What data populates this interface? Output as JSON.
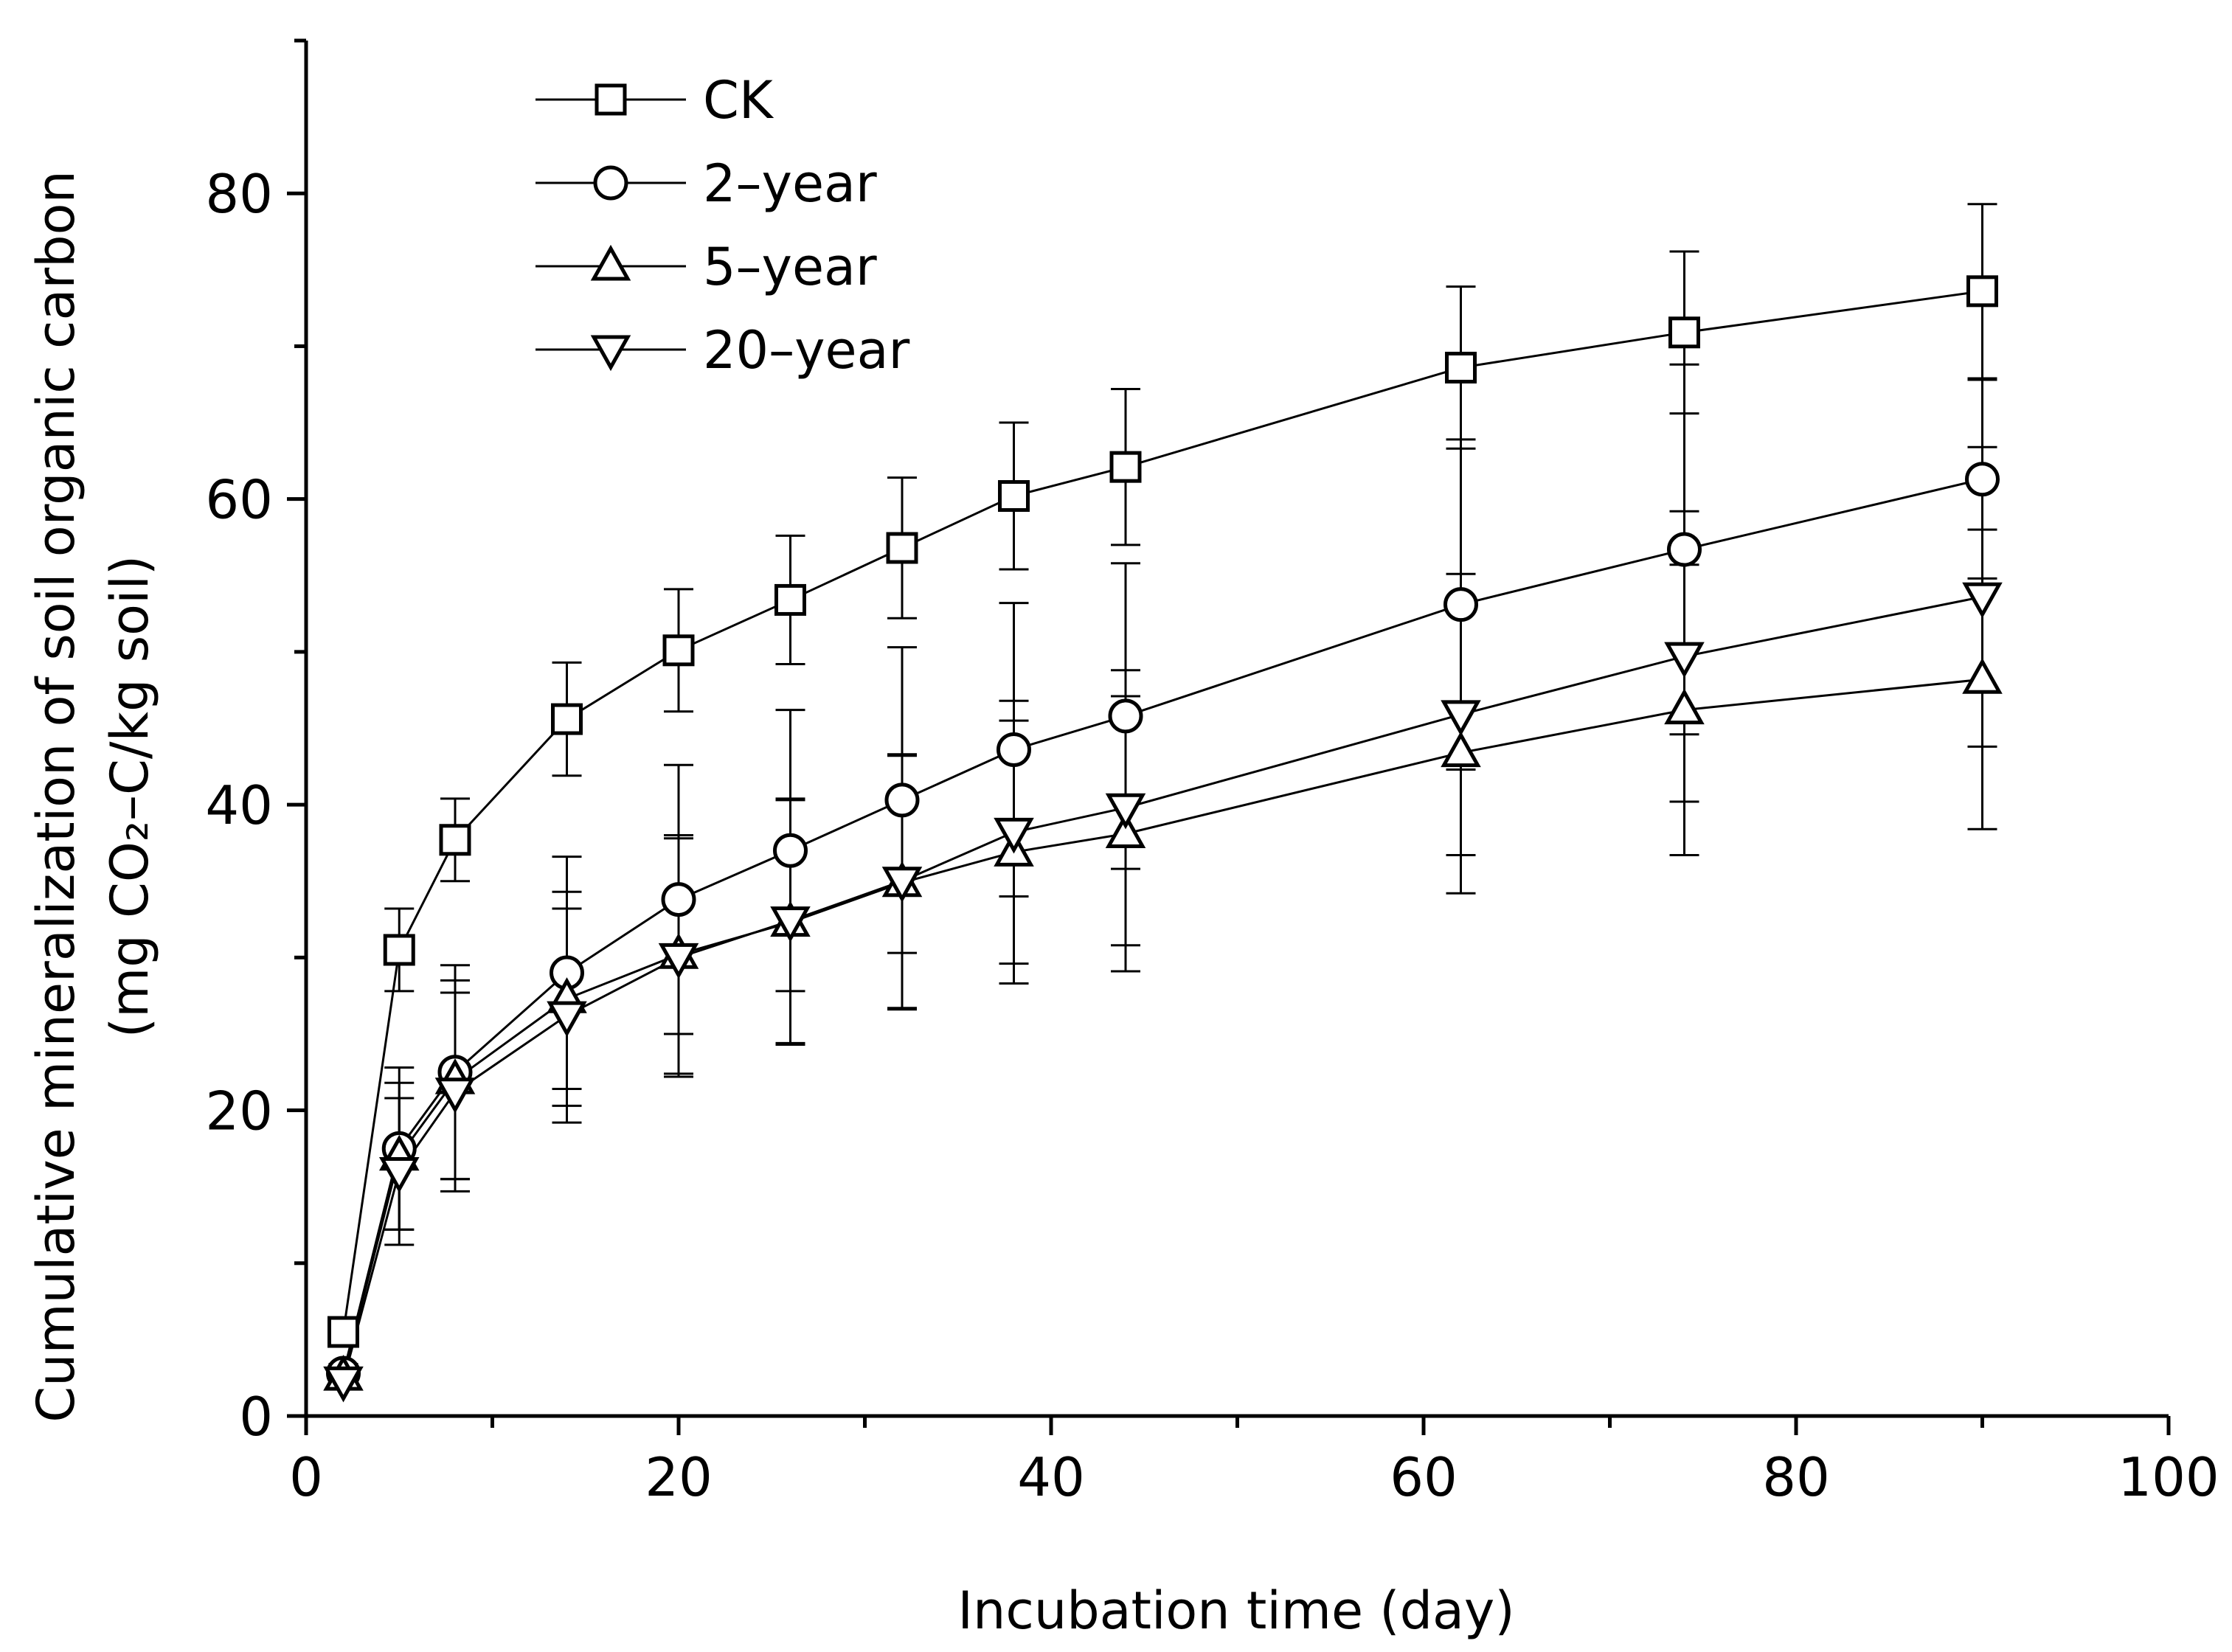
{
  "chart_data": {
    "type": "line",
    "title": "",
    "xlabel": "Incubation time (day)",
    "ylabel_line1": "Cumulative mineralization of soil organic carbon",
    "ylabel_line2": "(mg CO₂–C/kg soil)",
    "xlim": [
      0,
      100
    ],
    "ylim": [
      0,
      90
    ],
    "xticks": [
      0,
      20,
      40,
      60,
      80,
      100
    ],
    "yticks": [
      0,
      20,
      40,
      60,
      80
    ],
    "legend_position": "top-left",
    "x": [
      2,
      5,
      8,
      14,
      20,
      26,
      32,
      38,
      44,
      62,
      74,
      90
    ],
    "series": [
      {
        "name": "CK",
        "marker": "square",
        "values": [
          5.5,
          30.5,
          37.7,
          45.6,
          50.1,
          53.4,
          56.8,
          60.2,
          62.1,
          68.6,
          70.9,
          73.6
        ],
        "errors": [
          0.5,
          2.7,
          2.7,
          3.7,
          4.0,
          4.2,
          4.6,
          4.8,
          5.1,
          5.3,
          5.3,
          5.7
        ]
      },
      {
        "name": "2–year",
        "marker": "circle",
        "values": [
          2.8,
          17.5,
          22.5,
          29.0,
          33.8,
          37.0,
          40.3,
          43.6,
          45.8,
          53.1,
          56.7,
          61.3
        ],
        "errors": [
          0.6,
          5.3,
          7.0,
          7.6,
          8.8,
          9.2,
          10.0,
          9.6,
          10.0,
          10.8,
          12.1,
          6.5
        ]
      },
      {
        "name": "5–year",
        "marker": "triangle-up",
        "values": [
          2.6,
          17.0,
          22.0,
          27.3,
          30.2,
          32.3,
          34.9,
          36.9,
          38.1,
          43.4,
          46.2,
          48.2
        ]
      },
      {
        "name": "20–year",
        "marker": "triangle-down",
        "values": [
          2.3,
          16.0,
          21.2,
          26.2,
          30.0,
          32.4,
          35.0,
          38.2,
          39.8,
          45.9,
          49.7,
          53.6
        ]
      }
    ]
  }
}
